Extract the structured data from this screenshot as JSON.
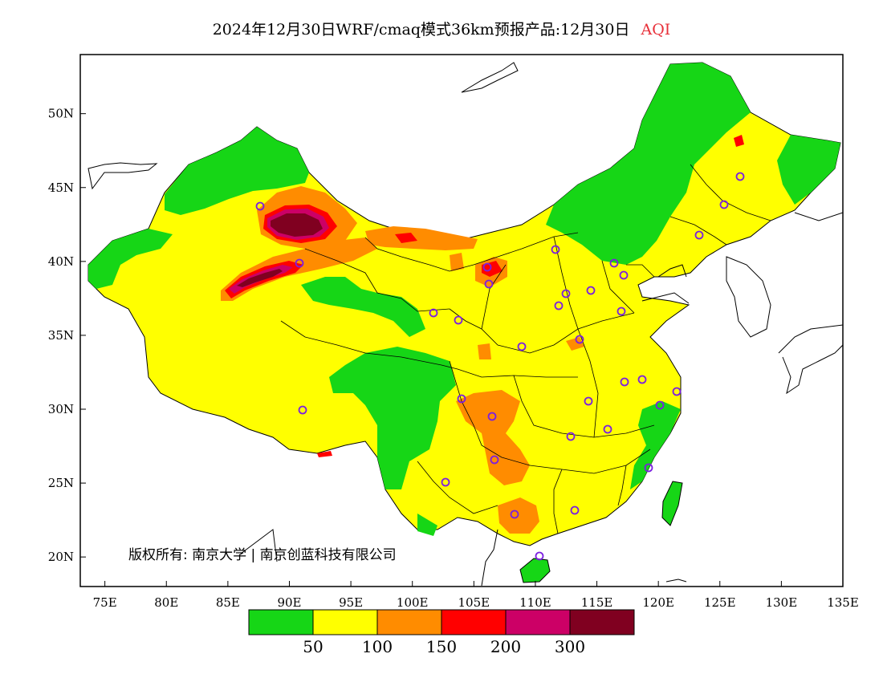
{
  "title": {
    "text": "2024年12月30日WRF/cmaq模式36km预报产品:12月30日",
    "product": "AQI"
  },
  "lon_labels": [
    "75E",
    "80E",
    "85E",
    "90E",
    "95E",
    "100E",
    "105E",
    "110E",
    "115E",
    "120E",
    "125E",
    "130E",
    "135E"
  ],
  "lat_labels": [
    "50N",
    "45N",
    "40N",
    "35N",
    "30N",
    "25N",
    "20N"
  ],
  "map_extent": {
    "lon": [
      73,
      135
    ],
    "lat": [
      18,
      54
    ]
  },
  "copyright": "版权所有: 南京大学 | 南京创蓝科技有限公司",
  "colorbar": {
    "colors": [
      "#16d616",
      "#ffff00",
      "#ff8c00",
      "#ff0000",
      "#cc0066",
      "#800020"
    ],
    "labels": [
      "50",
      "100",
      "150",
      "200",
      "300"
    ]
  }
}
